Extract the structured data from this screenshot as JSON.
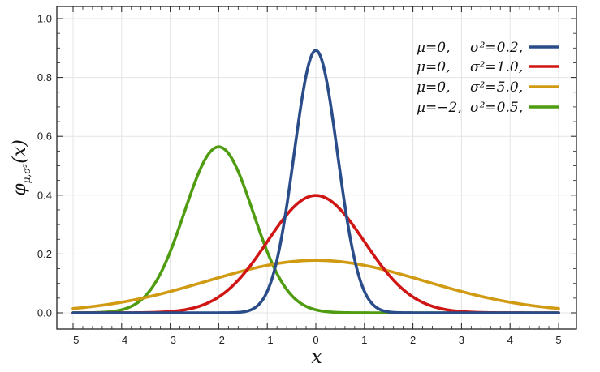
{
  "chart_data": {
    "type": "line",
    "title": "",
    "xlabel": "x",
    "ylabel_main": "φ",
    "ylabel_sub": "μ,σ²",
    "ylabel_arg": "(x)",
    "xlim": [
      -5,
      5
    ],
    "ylim": [
      0,
      1.0
    ],
    "x_ticks": [
      "−5",
      "−4",
      "−3",
      "−2",
      "−1",
      "0",
      "1",
      "2",
      "3",
      "4",
      "5"
    ],
    "y_ticks": [
      "0.0",
      "0.2",
      "0.4",
      "0.6",
      "0.8",
      "1.0"
    ],
    "grid": true,
    "legend_position": "top-right",
    "series": [
      {
        "name": "μ=0,   σ²=0.2,",
        "mu_text": "μ=0,",
        "var_text": "σ²=0.2,",
        "mu": 0,
        "variance": 0.2,
        "color": "#2a4d8a"
      },
      {
        "name": "μ=0,   σ²=1.0,",
        "mu_text": "μ=0,",
        "var_text": "σ²=1.0,",
        "mu": 0,
        "variance": 1.0,
        "color": "#d01515"
      },
      {
        "name": "μ=0,   σ²=5.0,",
        "mu_text": "μ=0,",
        "var_text": "σ²=5.0,",
        "mu": 0,
        "variance": 5.0,
        "color": "#d19a13"
      },
      {
        "name": "μ=−2, σ²=0.5,",
        "mu_text": "μ=−2,",
        "var_text": "σ²=0.5,",
        "mu": -2,
        "variance": 0.5,
        "color": "#4f9c11"
      }
    ]
  }
}
